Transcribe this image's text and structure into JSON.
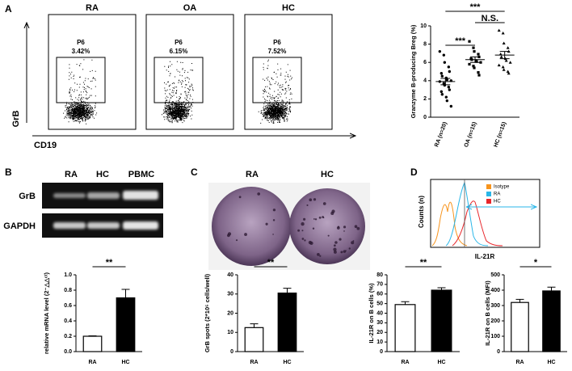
{
  "panels": {
    "A": {
      "letter": "A",
      "y_axis": "GrB",
      "x_axis": "CD19",
      "flow": [
        {
          "title": "RA",
          "gate": "P6",
          "percent": "3.42%"
        },
        {
          "title": "OA",
          "gate": "P6",
          "percent": "6.15%"
        },
        {
          "title": "HC",
          "gate": "P6",
          "percent": "7.52%"
        }
      ]
    },
    "B": {
      "letter": "B",
      "lanes": [
        "RA",
        "HC",
        "PBMC"
      ],
      "rows": [
        "GrB",
        "GAPDH"
      ]
    },
    "C": {
      "letter": "C",
      "wells": [
        "RA",
        "HC"
      ]
    },
    "D": {
      "letter": "D",
      "y_label": "Counts (n)",
      "x_label": "IL-21R",
      "legend": [
        {
          "name": "Isotype",
          "color": "#f7941d"
        },
        {
          "name": "RA",
          "color": "#29b6e8"
        },
        {
          "name": "HC",
          "color": "#e8262b"
        }
      ]
    }
  },
  "chart_data": [
    {
      "type": "dot",
      "y_label": "Granzyme B-producing Breg (%)",
      "categories": [
        "RA (n=20)",
        "OA (n=15)",
        "HC (n=15)"
      ],
      "points": [
        [
          7.2,
          6.8,
          6.0,
          5.5,
          5.0,
          4.8,
          4.5,
          4.3,
          4.1,
          4.0,
          3.9,
          3.7,
          3.5,
          3.3,
          3.0,
          2.8,
          2.5,
          2.2,
          1.8,
          1.2
        ],
        [
          8.3,
          7.6,
          7.2,
          6.9,
          6.6,
          6.4,
          6.3,
          6.2,
          6.1,
          6.0,
          5.8,
          5.6,
          5.4,
          4.9,
          4.6
        ],
        [
          9.5,
          9.2,
          8.1,
          7.6,
          7.2,
          6.9,
          6.6,
          6.4,
          6.2,
          6.0,
          5.7,
          5.5,
          5.2,
          5.0,
          4.8
        ]
      ],
      "values": [
        3.9,
        6.3,
        6.8
      ],
      "errors": [
        0.35,
        0.3,
        0.4
      ],
      "ylim": [
        0,
        10
      ],
      "yticks": [
        0,
        2,
        4,
        6,
        8,
        10
      ],
      "annotations": [
        "***",
        "***",
        "N.S."
      ]
    },
    {
      "type": "bar",
      "y_label": "relative mRNA level (2⁻△△ᶜᵗ)",
      "categories": [
        "RA",
        "HC"
      ],
      "values": [
        0.2,
        0.7
      ],
      "errors": [
        0.005,
        0.11
      ],
      "colors": [
        "#ffffff",
        "#000000"
      ],
      "ylim": [
        0,
        1
      ],
      "yticks": [
        {
          "value": 0,
          "label": "0.0"
        },
        {
          "value": 0.2,
          "label": "0.2"
        },
        {
          "value": 0.4,
          "label": "0.4"
        },
        {
          "value": 0.6,
          "label": "0.6"
        },
        {
          "value": 0.8,
          "label": "0.8"
        },
        {
          "value": 1,
          "label": "1.0"
        }
      ],
      "annotations": [
        "**"
      ]
    },
    {
      "type": "bar",
      "y_label": "GrB spots (2*10⁵ cells/well)",
      "categories": [
        "RA",
        "HC"
      ],
      "values": [
        12.5,
        30.5
      ],
      "errors": [
        2,
        2.5
      ],
      "colors": [
        "#ffffff",
        "#000000"
      ],
      "ylim": [
        0,
        40
      ],
      "yticks": [
        0,
        10,
        20,
        30,
        40
      ],
      "annotations": [
        "**"
      ]
    },
    {
      "type": "bar",
      "y_label": "IL-21R on B cells (%)",
      "categories": [
        "RA",
        "HC"
      ],
      "values": [
        49,
        64
      ],
      "errors": [
        3,
        2.5
      ],
      "colors": [
        "#ffffff",
        "#000000"
      ],
      "ylim": [
        0,
        80
      ],
      "yticks": [
        0,
        10,
        20,
        30,
        40,
        50,
        60,
        70,
        80
      ],
      "annotations": [
        "**"
      ]
    },
    {
      "type": "bar",
      "y_label": "IL-21R on B cells (MFI)",
      "categories": [
        "RA",
        "HC"
      ],
      "values": [
        320,
        395
      ],
      "errors": [
        20,
        25
      ],
      "colors": [
        "#ffffff",
        "#000000"
      ],
      "ylim": [
        0,
        500
      ],
      "yticks": [
        0,
        100,
        200,
        300,
        400,
        500
      ],
      "annotations": [
        "*"
      ]
    }
  ]
}
